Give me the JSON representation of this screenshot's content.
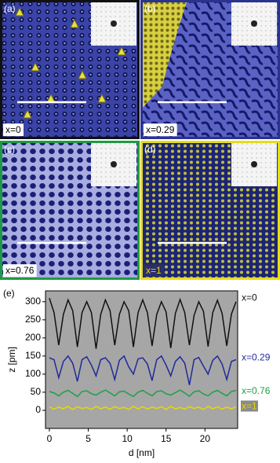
{
  "panels": [
    {
      "label": "(a)",
      "composition": "x=0",
      "border_color": "#111111"
    },
    {
      "label": "(b)",
      "composition": "x=0.29",
      "border_color": "#2b3391"
    },
    {
      "label": "(c)",
      "composition": "x=0.76",
      "border_color": "#1f9a45"
    },
    {
      "label": "(d)",
      "composition": "x=1",
      "border_color": "#e6dc1e"
    }
  ],
  "chart_data": {
    "type": "line",
    "panel_label": "(e)",
    "x_label": "d [nm]",
    "y_label": "z [pm]",
    "xlim": [
      -0.5,
      24.2
    ],
    "ylim": [
      -50,
      330
    ],
    "xticks": [
      0,
      5,
      10,
      15,
      20
    ],
    "yticks": [
      0,
      50,
      100,
      150,
      200,
      250,
      300
    ],
    "background": "#a6a6a6",
    "x": [
      0,
      0.6,
      1.2,
      1.8,
      2.4,
      3,
      3.6,
      4.2,
      4.8,
      5.4,
      6,
      6.6,
      7.2,
      7.8,
      8.4,
      9,
      9.6,
      10.2,
      10.8,
      11.4,
      12,
      12.6,
      13.2,
      13.8,
      14.4,
      15,
      15.6,
      16.2,
      16.8,
      17.4,
      18,
      18.6,
      19.2,
      19.8,
      20.4,
      21,
      21.6,
      22.2,
      22.8,
      23.4,
      24
    ],
    "series": [
      {
        "name": "x=0",
        "color": "#111111",
        "values": [
          310,
          270,
          180,
          265,
          305,
          275,
          175,
          270,
          300,
          270,
          170,
          265,
          305,
          275,
          180,
          265,
          300,
          275,
          175,
          270,
          305,
          270,
          178,
          265,
          300,
          272,
          172,
          268,
          306,
          270,
          180,
          262,
          300,
          274,
          176,
          270,
          304,
          268,
          178,
          266,
          300
        ]
      },
      {
        "name": "x=0.29",
        "color": "#22299a",
        "values": [
          145,
          140,
          90,
          135,
          150,
          130,
          80,
          140,
          148,
          125,
          95,
          140,
          145,
          130,
          85,
          138,
          150,
          120,
          100,
          142,
          145,
          128,
          82,
          140,
          150,
          125,
          95,
          135,
          148,
          130,
          70,
          140,
          146,
          122,
          100,
          138,
          150,
          128,
          85,
          135,
          140
        ]
      },
      {
        "name": "x=0.76",
        "color": "#1fa043",
        "values": [
          52,
          48,
          40,
          50,
          55,
          47,
          38,
          52,
          54,
          46,
          42,
          50,
          56,
          48,
          40,
          51,
          53,
          45,
          38,
          50,
          55,
          47,
          40,
          52,
          54,
          46,
          42,
          49,
          56,
          48,
          39,
          51,
          54,
          45,
          40,
          50,
          55,
          47,
          40,
          52,
          55
        ]
      },
      {
        "name": "x=1",
        "color": "#e8d800",
        "values": [
          10,
          3,
          9,
          4,
          11,
          2,
          10,
          5,
          8,
          2,
          11,
          4,
          9,
          3,
          10,
          5,
          8,
          2,
          11,
          4,
          10,
          3,
          9,
          5,
          10,
          2,
          11,
          4,
          8,
          3,
          10,
          5,
          9,
          2,
          11,
          4,
          10,
          3,
          9,
          4,
          10
        ]
      }
    ]
  }
}
